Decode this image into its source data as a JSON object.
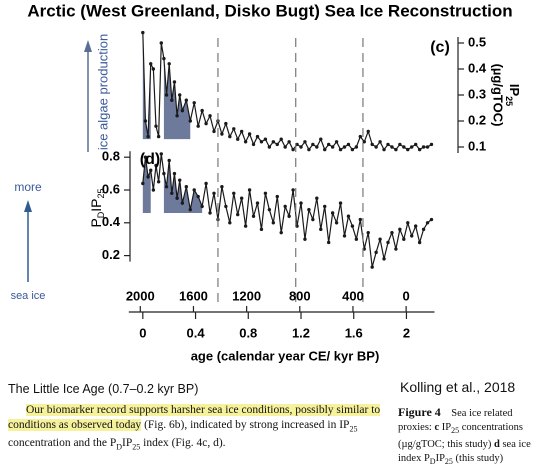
{
  "title": "Arctic (West Greenland, Disko Bugt) Sea Ice Reconstruction",
  "annotations": {
    "ice_algae": "ice algae production",
    "more": "more",
    "sea_ice": "sea ice"
  },
  "chart_data": [
    {
      "type": "line",
      "label": "(c)",
      "ylabel_parts": [
        "IP",
        "25",
        "(µg/gTOC)"
      ],
      "xlim": [
        -0.12,
        2.3
      ],
      "ylim": [
        0.05,
        0.55
      ],
      "yticks": [
        0.1,
        0.2,
        0.3,
        0.4,
        0.5
      ],
      "highlight": {
        "ranges": [
          [
            0,
            0.06
          ],
          [
            0.16,
            0.36
          ]
        ],
        "baseline": 0.13,
        "color": "#6e7a9c"
      },
      "series": [
        {
          "color": "#1a1a1a",
          "x": [
            0.0,
            0.02,
            0.04,
            0.06,
            0.08,
            0.1,
            0.12,
            0.14,
            0.16,
            0.18,
            0.2,
            0.22,
            0.24,
            0.26,
            0.28,
            0.3,
            0.33,
            0.36,
            0.39,
            0.42,
            0.45,
            0.48,
            0.51,
            0.54,
            0.57,
            0.6,
            0.63,
            0.66,
            0.69,
            0.72,
            0.75,
            0.78,
            0.81,
            0.84,
            0.87,
            0.9,
            0.93,
            0.96,
            0.99,
            1.02,
            1.05,
            1.08,
            1.11,
            1.14,
            1.17,
            1.2,
            1.23,
            1.26,
            1.29,
            1.32,
            1.35,
            1.38,
            1.41,
            1.44,
            1.47,
            1.5,
            1.53,
            1.56,
            1.59,
            1.62,
            1.65,
            1.68,
            1.71,
            1.74,
            1.77,
            1.8,
            1.83,
            1.86,
            1.89,
            1.92,
            1.95,
            1.98,
            2.01,
            2.04,
            2.07,
            2.1,
            2.13,
            2.16,
            2.19
          ],
          "values": [
            0.54,
            0.2,
            0.14,
            0.42,
            0.4,
            0.18,
            0.14,
            0.5,
            0.44,
            0.3,
            0.42,
            0.28,
            0.35,
            0.22,
            0.3,
            0.24,
            0.28,
            0.2,
            0.27,
            0.18,
            0.24,
            0.19,
            0.22,
            0.16,
            0.2,
            0.15,
            0.19,
            0.14,
            0.17,
            0.13,
            0.16,
            0.12,
            0.15,
            0.11,
            0.14,
            0.12,
            0.13,
            0.1,
            0.12,
            0.11,
            0.13,
            0.1,
            0.12,
            0.09,
            0.11,
            0.1,
            0.12,
            0.09,
            0.11,
            0.1,
            0.13,
            0.09,
            0.11,
            0.1,
            0.12,
            0.09,
            0.1,
            0.11,
            0.09,
            0.1,
            0.14,
            0.12,
            0.16,
            0.11,
            0.1,
            0.12,
            0.09,
            0.11,
            0.1,
            0.09,
            0.11,
            0.1,
            0.09,
            0.1,
            0.11,
            0.09,
            0.1,
            0.1,
            0.11
          ]
        }
      ]
    },
    {
      "type": "line",
      "label": "(d)",
      "ylabel_parts": [
        "P",
        "D",
        "IP",
        "25"
      ],
      "xlim": [
        -0.12,
        2.3
      ],
      "ylim": [
        0.1,
        0.85
      ],
      "yticks": [
        0.2,
        0.4,
        0.6,
        0.8
      ],
      "xticks": [
        0,
        0.4,
        0.8,
        1.2,
        1.6,
        2
      ],
      "x2lim": [
        2100,
        -300
      ],
      "x2ticks": [
        2000,
        1600,
        1200,
        800,
        400,
        0
      ],
      "xlabel": "age (calendar year CE/ kyr BP)",
      "reference_lines": [
        0.57,
        1.16,
        1.67
      ],
      "highlight": {
        "ranges": [
          [
            0,
            0.06
          ],
          [
            0.16,
            0.46
          ]
        ],
        "baseline": 0.46,
        "color": "#6e7a9c"
      },
      "series": [
        {
          "color": "#1a1a1a",
          "x": [
            0.0,
            0.02,
            0.04,
            0.06,
            0.08,
            0.1,
            0.12,
            0.14,
            0.16,
            0.18,
            0.2,
            0.22,
            0.24,
            0.26,
            0.28,
            0.3,
            0.33,
            0.36,
            0.39,
            0.42,
            0.45,
            0.48,
            0.51,
            0.54,
            0.57,
            0.6,
            0.63,
            0.66,
            0.69,
            0.72,
            0.75,
            0.78,
            0.81,
            0.84,
            0.87,
            0.9,
            0.93,
            0.96,
            0.99,
            1.02,
            1.05,
            1.08,
            1.11,
            1.14,
            1.17,
            1.2,
            1.23,
            1.26,
            1.29,
            1.32,
            1.35,
            1.38,
            1.41,
            1.44,
            1.47,
            1.5,
            1.53,
            1.56,
            1.59,
            1.62,
            1.65,
            1.68,
            1.71,
            1.74,
            1.77,
            1.8,
            1.83,
            1.86,
            1.89,
            1.92,
            1.95,
            1.98,
            2.01,
            2.04,
            2.07,
            2.1,
            2.13,
            2.16,
            2.19
          ],
          "values": [
            0.64,
            0.8,
            0.68,
            0.72,
            0.6,
            0.75,
            0.65,
            0.82,
            0.7,
            0.62,
            0.78,
            0.58,
            0.7,
            0.55,
            0.66,
            0.52,
            0.62,
            0.48,
            0.6,
            0.56,
            0.5,
            0.64,
            0.46,
            0.58,
            0.42,
            0.62,
            0.5,
            0.4,
            0.58,
            0.45,
            0.55,
            0.38,
            0.6,
            0.44,
            0.52,
            0.36,
            0.58,
            0.48,
            0.4,
            0.56,
            0.34,
            0.5,
            0.44,
            0.6,
            0.38,
            0.52,
            0.3,
            0.48,
            0.42,
            0.55,
            0.36,
            0.5,
            0.28,
            0.46,
            0.4,
            0.52,
            0.32,
            0.44,
            0.38,
            0.3,
            0.42,
            0.24,
            0.34,
            0.13,
            0.22,
            0.3,
            0.18,
            0.28,
            0.34,
            0.24,
            0.36,
            0.3,
            0.4,
            0.32,
            0.38,
            0.28,
            0.36,
            0.4,
            0.42
          ]
        }
      ]
    }
  ],
  "text": {
    "heading": "The Little Ice Age (0.7–0.2 kyr BP)",
    "citation": "Kolling et al., 2018",
    "paragraph": [
      "Our biomarker record supports harsher sea ice conditions, possibly similar to conditions as observed today",
      " (Fig. 6b), indicated by strong increased in IP",
      "25",
      " concentration and the P",
      "D",
      "IP",
      "25",
      " index (Fig. 4c, d)."
    ],
    "caption": [
      "Figure 4",
      "Sea ice related proxies: ",
      "c",
      " IP",
      "25",
      " concentrations (µg/gTOC; this study) ",
      "d",
      " sea ice index P",
      "D",
      "IP",
      "25",
      " (this study)"
    ]
  }
}
